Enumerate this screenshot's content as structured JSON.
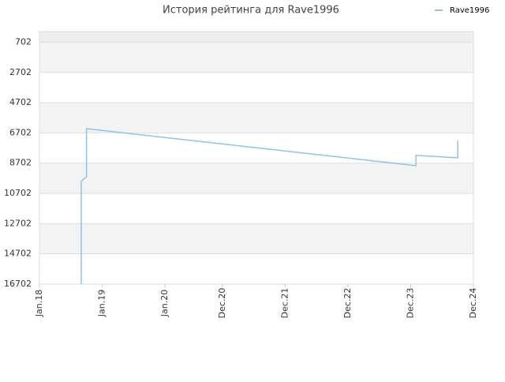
{
  "chart_data": {
    "type": "line",
    "title": "История рейтинга для Rave1996",
    "x": [
      "2018-09",
      "2018-09",
      "2018-10",
      "2018-10",
      "2018-10",
      "2024-01",
      "2024-01",
      "2024-09",
      "2024-09"
    ],
    "series": [
      {
        "name": "Rave1996",
        "color": "#8cc3ec",
        "values": [
          16702,
          9900,
          9600,
          8100,
          6420,
          8870,
          8190,
          8350,
          7200
        ]
      }
    ],
    "xlim": [
      "2018-01",
      "2024-12"
    ],
    "xticks": [
      {
        "value": "2018-01",
        "label": "Jan.18"
      },
      {
        "value": "2019-01",
        "label": "Jan.19"
      },
      {
        "value": "2020-01",
        "label": "Jan.20"
      },
      {
        "value": "2020-12",
        "label": "Dec.20"
      },
      {
        "value": "2021-12",
        "label": "Dec.21"
      },
      {
        "value": "2022-12",
        "label": "Dec.22"
      },
      {
        "value": "2023-12",
        "label": "Dec.23"
      },
      {
        "value": "2024-12",
        "label": "Dec.24"
      }
    ],
    "ylim": [
      16702,
      0
    ],
    "yticks": [
      702,
      2702,
      4702,
      6702,
      8702,
      10702,
      12702,
      14702,
      16702
    ],
    "grid": true,
    "legend": "top-right"
  }
}
